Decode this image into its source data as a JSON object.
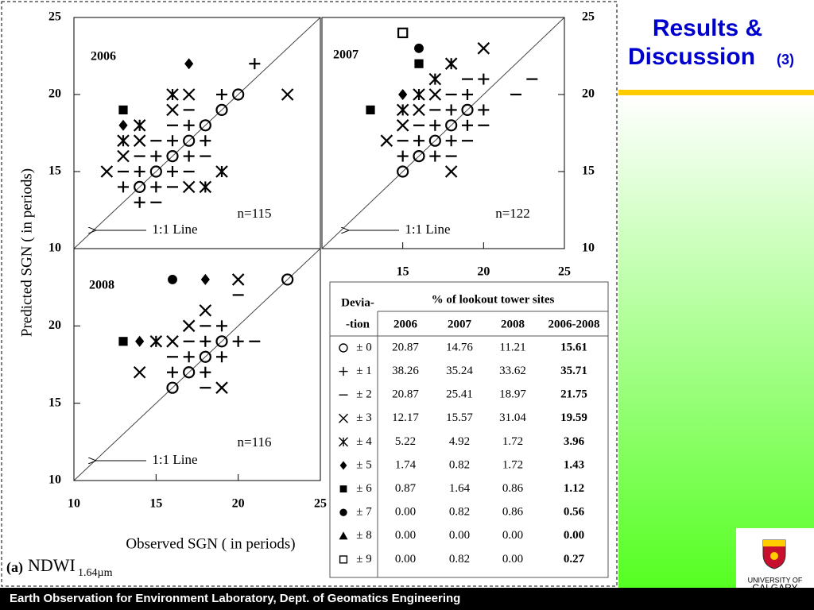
{
  "title": "Results &",
  "title2": "Discussion",
  "title_suffix": "(3)",
  "footer": "Earth Observation for Environment Laboratory, Dept. of Geomatics Engineering",
  "logo": [
    "UNIVERSITY OF",
    "CALGARY"
  ],
  "x_label": "Observed SGN ( in periods)",
  "y_label": "Predicted SGN ( in periods)",
  "caption": {
    "label": "(a)",
    "index": "NDWI",
    "subscript": "1.64µm"
  },
  "chart_data": [
    {
      "type": "scatter",
      "title": "2006",
      "annotation": "n=115",
      "line_label": "1:1 Line",
      "xlim": [
        10,
        25
      ],
      "ylim": [
        10,
        25
      ],
      "xticks": [],
      "yticks": [
        10,
        15,
        20,
        25
      ],
      "series": [
        {
          "marker": "circle",
          "x": [
            14,
            15,
            16,
            17,
            18,
            19,
            20
          ],
          "y": [
            14,
            15,
            16,
            17,
            18,
            19,
            20
          ]
        },
        {
          "marker": "plus",
          "x": [
            21,
            19,
            17,
            16,
            18,
            15,
            17,
            14,
            16,
            13,
            15,
            14
          ],
          "y": [
            22,
            20,
            18,
            17,
            17,
            16,
            16,
            15,
            15,
            14,
            14,
            13
          ]
        },
        {
          "marker": "minus",
          "x": [
            17,
            16,
            15,
            14,
            18,
            13,
            17,
            16,
            15
          ],
          "y": [
            19,
            18,
            17,
            16,
            16,
            15,
            15,
            14,
            13
          ]
        },
        {
          "marker": "x",
          "x": [
            17,
            23,
            16,
            14,
            13,
            12,
            17
          ],
          "y": [
            20,
            20,
            19,
            17,
            16,
            15,
            14
          ]
        },
        {
          "marker": "asterisk",
          "x": [
            16,
            14,
            13,
            19,
            18
          ],
          "y": [
            20,
            18,
            17,
            15,
            14
          ]
        },
        {
          "marker": "diamond",
          "x": [
            17,
            13
          ],
          "y": [
            22,
            18
          ]
        },
        {
          "marker": "square",
          "x": [
            13
          ],
          "y": [
            19
          ]
        }
      ]
    },
    {
      "type": "scatter",
      "title": "2007",
      "annotation": "n=122",
      "line_label": "1:1 Line",
      "xlim": [
        10,
        25
      ],
      "ylim": [
        10,
        25
      ],
      "xticks": [
        15,
        20,
        25
      ],
      "yticks": [
        10,
        15,
        20,
        25
      ],
      "series": [
        {
          "marker": "circle",
          "x": [
            19,
            18,
            17,
            16,
            15
          ],
          "y": [
            19,
            18,
            17,
            16,
            15
          ]
        },
        {
          "marker": "plus",
          "x": [
            20,
            19,
            18,
            20,
            17,
            19,
            16,
            18,
            15,
            17
          ],
          "y": [
            21,
            20,
            19,
            19,
            18,
            18,
            17,
            17,
            16,
            16
          ]
        },
        {
          "marker": "minus",
          "x": [
            19,
            23,
            22,
            18,
            17,
            16,
            20,
            15,
            19,
            18
          ],
          "y": [
            21,
            21,
            20,
            20,
            19,
            18,
            18,
            17,
            17,
            16
          ]
        },
        {
          "marker": "x",
          "x": [
            20,
            17,
            16,
            15,
            14,
            18
          ],
          "y": [
            23,
            20,
            19,
            18,
            17,
            15
          ]
        },
        {
          "marker": "asterisk",
          "x": [
            18,
            17,
            16,
            15
          ],
          "y": [
            22,
            21,
            20,
            19
          ]
        },
        {
          "marker": "diamond",
          "x": [
            15
          ],
          "y": [
            20
          ]
        },
        {
          "marker": "square",
          "x": [
            16,
            13
          ],
          "y": [
            22,
            19
          ]
        },
        {
          "marker": "dot",
          "x": [
            16
          ],
          "y": [
            23
          ]
        },
        {
          "marker": "open-square",
          "x": [
            15
          ],
          "y": [
            24
          ]
        }
      ]
    },
    {
      "type": "scatter",
      "title": "2008",
      "annotation": "n=116",
      "line_label": "1:1 Line",
      "xlim": [
        10,
        25
      ],
      "ylim": [
        10,
        25
      ],
      "xticks": [
        10,
        15,
        20,
        25
      ],
      "yticks": [
        10,
        15,
        20
      ],
      "series": [
        {
          "marker": "circle",
          "x": [
            23,
            19,
            18,
            17,
            16
          ],
          "y": [
            23,
            19,
            18,
            17,
            16
          ]
        },
        {
          "marker": "plus",
          "x": [
            19,
            18,
            20,
            17,
            19,
            16,
            18
          ],
          "y": [
            20,
            19,
            19,
            18,
            18,
            17,
            17
          ]
        },
        {
          "marker": "minus",
          "x": [
            20,
            18,
            17,
            21,
            16,
            18
          ],
          "y": [
            22,
            20,
            19,
            19,
            18,
            16
          ]
        },
        {
          "marker": "x",
          "x": [
            20,
            18,
            17,
            16,
            14,
            19
          ],
          "y": [
            23,
            21,
            20,
            19,
            17,
            16
          ]
        },
        {
          "marker": "asterisk",
          "x": [
            15
          ],
          "y": [
            19
          ]
        },
        {
          "marker": "diamond",
          "x": [
            18,
            14
          ],
          "y": [
            23,
            19
          ]
        },
        {
          "marker": "square",
          "x": [
            13
          ],
          "y": [
            19
          ]
        },
        {
          "marker": "dot",
          "x": [
            16
          ],
          "y": [
            23
          ]
        }
      ]
    }
  ],
  "table": {
    "header_top": [
      "Devia-",
      "% of lookout tower sites"
    ],
    "header": [
      "-tion",
      "2006",
      "2007",
      "2008",
      "2006-2008"
    ],
    "rows": [
      {
        "marker": "circle",
        "cells": [
          "± 0",
          "20.87",
          "14.76",
          "11.21",
          "15.61"
        ]
      },
      {
        "marker": "plus",
        "cells": [
          "± 1",
          "38.26",
          "35.24",
          "33.62",
          "35.71"
        ]
      },
      {
        "marker": "minus",
        "cells": [
          "± 2",
          "20.87",
          "25.41",
          "18.97",
          "21.75"
        ]
      },
      {
        "marker": "x",
        "cells": [
          "± 3",
          "12.17",
          "15.57",
          "31.04",
          "19.59"
        ]
      },
      {
        "marker": "asterisk",
        "cells": [
          "± 4",
          "5.22",
          "4.92",
          "1.72",
          "3.96"
        ]
      },
      {
        "marker": "diamond",
        "cells": [
          "± 5",
          "1.74",
          "0.82",
          "1.72",
          "1.43"
        ]
      },
      {
        "marker": "square",
        "cells": [
          "± 6",
          "0.87",
          "1.64",
          "0.86",
          "1.12"
        ]
      },
      {
        "marker": "dot",
        "cells": [
          "± 7",
          "0.00",
          "0.82",
          "0.86",
          "0.56"
        ]
      },
      {
        "marker": "triangle",
        "cells": [
          "± 8",
          "0.00",
          "0.00",
          "0.00",
          "0.00"
        ]
      },
      {
        "marker": "open-square",
        "cells": [
          "± 9",
          "0.00",
          "0.82",
          "0.00",
          "0.27"
        ]
      }
    ]
  }
}
